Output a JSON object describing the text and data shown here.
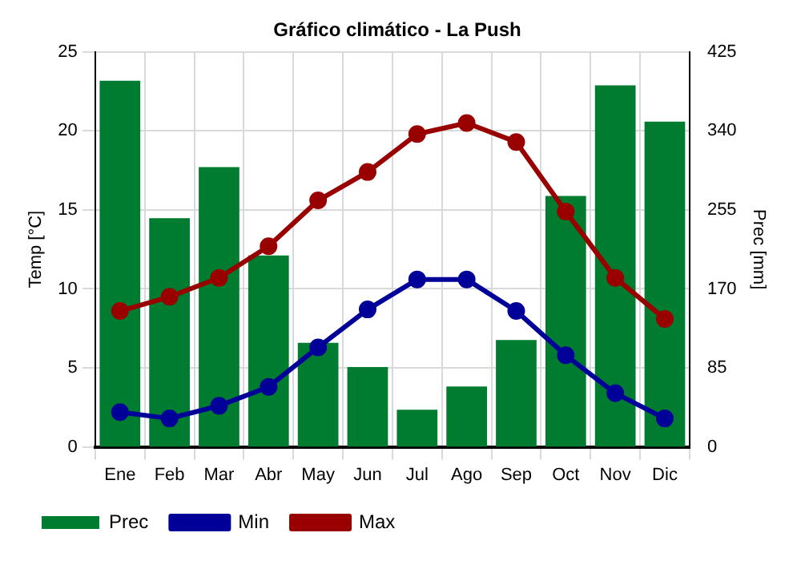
{
  "chart_data": {
    "type": "bar",
    "title": "Gráfico climático - La Push",
    "ylabel": "Temp [°C]",
    "y2label": "Prec [mm]",
    "categories": [
      "Ene",
      "Feb",
      "Mar",
      "Abr",
      "May",
      "Jun",
      "Jul",
      "Ago",
      "Sep",
      "Oct",
      "Nov",
      "Dic"
    ],
    "series": [
      {
        "name": "Prec",
        "axis": "y2",
        "color": "#007c30",
        "values": [
          394,
          246,
          301,
          206,
          112,
          86,
          40,
          65,
          115,
          270,
          389,
          350
        ]
      },
      {
        "name": "Min",
        "type": "line",
        "color": "#000099",
        "values": [
          2.2,
          1.8,
          2.6,
          3.8,
          6.3,
          8.7,
          10.6,
          10.6,
          8.6,
          5.8,
          3.4,
          1.8
        ]
      },
      {
        "name": "Max",
        "type": "line",
        "color": "#990000",
        "values": [
          8.6,
          9.5,
          10.7,
          12.7,
          15.6,
          17.4,
          19.8,
          20.5,
          19.3,
          14.9,
          10.7,
          8.1
        ]
      }
    ],
    "ylim": [
      0,
      25
    ],
    "yticks": [
      0,
      5,
      10,
      15,
      20,
      25
    ],
    "y2lim": [
      0,
      425
    ],
    "y2ticks": [
      0,
      85,
      170,
      255,
      340,
      425
    ],
    "grid": true,
    "legend": "bottom left",
    "marker": "circle"
  }
}
